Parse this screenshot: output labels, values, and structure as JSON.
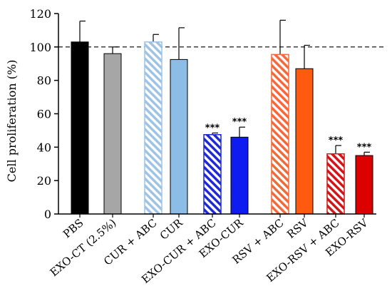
{
  "chart_data": {
    "type": "bar",
    "title": "",
    "xlabel": "",
    "ylabel": "Cell proliferation (%)",
    "ylim": [
      0,
      120
    ],
    "yticks": [
      0,
      20,
      40,
      60,
      80,
      100,
      120
    ],
    "reference_line": 100,
    "grid": false,
    "categories": [
      "PBS",
      "EXO-CT (2.5%)",
      "CUR + ABC",
      "CUR",
      "EXO-CUR + ABC",
      "EXO-CUR",
      "RSV + ABC",
      "RSV",
      "EXO-RSV + ABC",
      "EXO-RSV"
    ],
    "values": [
      103,
      96,
      103,
      92.5,
      47.5,
      46,
      95.5,
      87,
      36,
      35
    ],
    "errors": [
      12.5,
      4,
      4.5,
      19,
      1,
      6,
      20.5,
      14,
      5,
      2
    ],
    "significance": [
      "",
      "",
      "",
      "",
      "***",
      "***",
      "",
      "",
      "***",
      "***"
    ],
    "colors": [
      "#000000",
      "#a6a6a6",
      "#9dc3e6",
      "#8bbde6",
      "#1f2bd0",
      "#0f1cf0",
      "#f4693a",
      "#ff5a10",
      "#d01616",
      "#dd0000"
    ],
    "hatched": [
      false,
      false,
      true,
      false,
      true,
      false,
      true,
      false,
      true,
      false
    ]
  }
}
